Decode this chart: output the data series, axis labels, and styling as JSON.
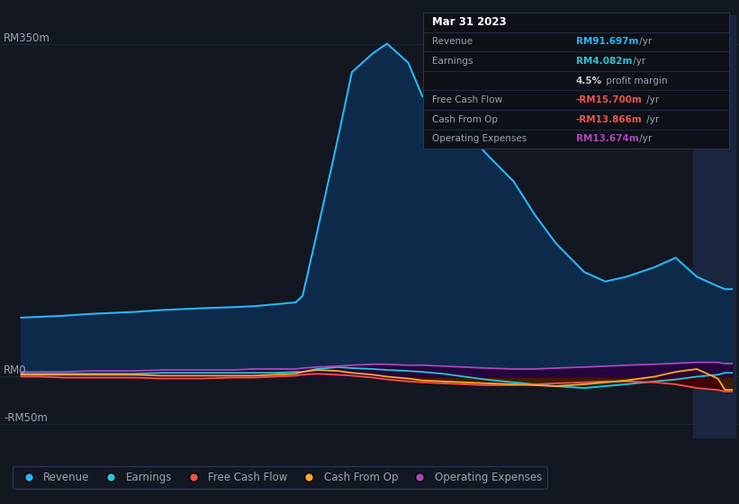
{
  "background_color": "#131722",
  "plot_bg_color": "#131722",
  "grid_color": "#1e2a3a",
  "text_color": "#9ba3b2",
  "years": [
    2013.0,
    2013.3,
    2013.6,
    2014.0,
    2014.3,
    2014.6,
    2015.0,
    2015.3,
    2015.6,
    2016.0,
    2016.3,
    2016.6,
    2016.9,
    2017.0,
    2017.2,
    2017.5,
    2017.7,
    2018.0,
    2018.2,
    2018.5,
    2018.7,
    2019.0,
    2019.3,
    2019.6,
    2020.0,
    2020.3,
    2020.6,
    2021.0,
    2021.3,
    2021.6,
    2022.0,
    2022.3,
    2022.6,
    2022.9,
    2023.0,
    2023.1
  ],
  "revenue": [
    62,
    63,
    64,
    66,
    67,
    68,
    70,
    71,
    72,
    73,
    74,
    76,
    78,
    85,
    150,
    250,
    320,
    340,
    350,
    330,
    295,
    280,
    260,
    235,
    205,
    170,
    140,
    110,
    100,
    105,
    115,
    125,
    105,
    95,
    92,
    92
  ],
  "earnings": [
    3,
    3,
    3,
    3,
    3,
    3,
    4,
    4,
    4,
    4,
    4,
    4,
    5,
    5,
    8,
    10,
    9,
    8,
    7,
    6,
    5,
    3,
    0,
    -3,
    -6,
    -8,
    -10,
    -12,
    -10,
    -8,
    -5,
    -3,
    0,
    2,
    4,
    4
  ],
  "free_cash_flow": [
    0,
    0,
    -1,
    -1,
    -1,
    -1,
    -2,
    -2,
    -2,
    -1,
    -1,
    0,
    1,
    2,
    3,
    2,
    1,
    -1,
    -3,
    -5,
    -6,
    -7,
    -8,
    -9,
    -9,
    -8,
    -7,
    -6,
    -5,
    -5,
    -6,
    -8,
    -12,
    -14,
    -15.7,
    -15.7
  ],
  "cash_from_op": [
    2,
    2,
    2,
    2,
    2,
    2,
    1,
    1,
    1,
    1,
    1,
    2,
    3,
    5,
    7,
    6,
    4,
    2,
    0,
    -2,
    -4,
    -5,
    -6,
    -7,
    -8,
    -9,
    -10,
    -8,
    -6,
    -4,
    0,
    5,
    8,
    -2,
    -13.866,
    -13.866
  ],
  "operating_expenses": [
    5,
    5,
    5,
    6,
    6,
    6,
    7,
    7,
    7,
    7,
    8,
    8,
    8,
    9,
    10,
    11,
    12,
    13,
    13,
    12,
    12,
    11,
    10,
    9,
    8,
    8,
    9,
    10,
    11,
    12,
    13,
    14,
    15,
    15,
    13.674,
    13.674
  ],
  "revenue_line_color": "#29b6f6",
  "revenue_fill_color": "#0d2a4a",
  "earnings_line_color": "#26c6da",
  "earnings_fill_color": "#00363a",
  "fcf_line_color": "#ef5350",
  "fcf_fill_color": "#4a0000",
  "cfo_line_color": "#ffa726",
  "cfo_fill_color": "#3e1f00",
  "opex_line_color": "#ab47bc",
  "opex_fill_color": "#2a003a",
  "highlight_start": 2022.55,
  "highlight_end": 2023.15,
  "highlight_color": "#1a2540",
  "ylim_min": -65,
  "ylim_max": 380,
  "xlim_min": 2012.7,
  "xlim_max": 2023.2,
  "xticks": [
    2013,
    2014,
    2015,
    2016,
    2017,
    2018,
    2019,
    2020,
    2021,
    2022,
    2023
  ],
  "info_box": {
    "title": "Mar 31 2023",
    "rows": [
      {
        "label": "Revenue",
        "value": "RM91.697m",
        "suffix": " /yr",
        "vcolor": "#29b6f6"
      },
      {
        "label": "Earnings",
        "value": "RM4.082m",
        "suffix": " /yr",
        "vcolor": "#26c6da"
      },
      {
        "label": "",
        "value": "4.5%",
        "suffix": " profit margin",
        "vcolor": "#cccccc"
      },
      {
        "label": "Free Cash Flow",
        "value": "-RM15.700m",
        "suffix": " /yr",
        "vcolor": "#ef5350"
      },
      {
        "label": "Cash From Op",
        "value": "-RM13.866m",
        "suffix": " /yr",
        "vcolor": "#ef5350"
      },
      {
        "label": "Operating Expenses",
        "value": "RM13.674m",
        "suffix": " /yr",
        "vcolor": "#ab47bc"
      }
    ]
  },
  "legend_items": [
    "Revenue",
    "Earnings",
    "Free Cash Flow",
    "Cash From Op",
    "Operating Expenses"
  ],
  "legend_colors": [
    "#29b6f6",
    "#26c6da",
    "#ef5350",
    "#ffa726",
    "#ab47bc"
  ]
}
